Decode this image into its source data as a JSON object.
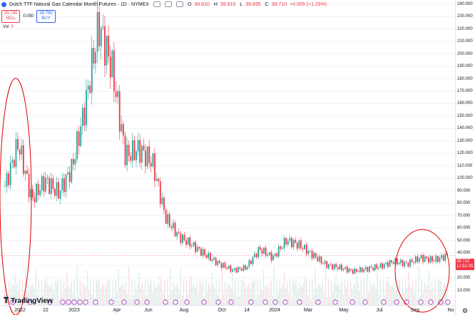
{
  "header": {
    "symbol_title": "Dutch TTF Natural Gas Calendar Month Futures · 1D · NYMEX",
    "ohlc": [
      {
        "label": "O",
        "value": "39.810"
      },
      {
        "label": "H",
        "value": "39.810"
      },
      {
        "label": "L",
        "value": "39.695"
      },
      {
        "label": "C",
        "value": "39.710"
      }
    ],
    "change": "+0.505 (+1.29%)",
    "sell_price": "39.740",
    "sell_label": "SELL",
    "spread": "0.050",
    "buy_price": "39.790",
    "buy_label": "BUY",
    "vol_label": "Vol",
    "vol_value": "0"
  },
  "price_axis": [
    "240.000",
    "230.000",
    "220.000",
    "210.000",
    "200.000",
    "190.000",
    "180.000",
    "170.000",
    "160.000",
    "150.000",
    "140.000",
    "130.000",
    "120.000",
    "110.000",
    "100.000",
    "90.000",
    "80.000",
    "70.000",
    "60.000",
    "50.000",
    "40.000",
    "30.000",
    "20.000",
    "10.000"
  ],
  "current_price": {
    "price": "39.710",
    "countdown": "12:51:05"
  },
  "time_axis": [
    "2022",
    "22",
    "2023",
    "Apr",
    "Jun",
    "Aug",
    "Oct",
    "14",
    "2024",
    "Mar",
    "May",
    "Jul",
    "Sep",
    "No"
  ],
  "logo_text": "TradingView",
  "colors": {
    "up": "#26a69a",
    "down": "#f23645",
    "annotation": "#e00000",
    "grid": "#f0f3fa"
  },
  "chart_data": {
    "type": "candlestick",
    "x": [
      "2022-01",
      "2022-02",
      "2022-03",
      "2022-04",
      "2022-05",
      "2022-06",
      "2022-07",
      "2022-08",
      "2022-09",
      "2022-10",
      "2022-11",
      "2022-12",
      "2023-01",
      "2023-02",
      "2023-03",
      "2023-04",
      "2023-05",
      "2023-06",
      "2023-07",
      "2023-08",
      "2023-09",
      "2023-10",
      "2023-11",
      "2023-12",
      "2024-01",
      "2024-02",
      "2024-03",
      "2024-04",
      "2024-05",
      "2024-06",
      "2024-07",
      "2024-08",
      "2024-09",
      "2024-10"
    ],
    "values": [
      95,
      130,
      85,
      100,
      90,
      110,
      160,
      225,
      190,
      120,
      125,
      115,
      70,
      55,
      48,
      40,
      33,
      28,
      30,
      45,
      38,
      52,
      48,
      40,
      32,
      30,
      27,
      29,
      31,
      35,
      33,
      38,
      36,
      39.71
    ],
    "ylim": [
      0,
      245
    ],
    "annotations": [
      "circle around 2022 spike",
      "circle around Sep 2024"
    ]
  }
}
